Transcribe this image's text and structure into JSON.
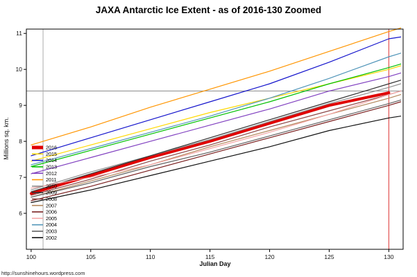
{
  "page": {
    "footer": "http://sunshinehours.wordpress.com"
  },
  "chart_data": {
    "type": "line",
    "title": "JAXA Antarctic Ice Extent - as of 2016-130 Zoomed",
    "xlabel": "Julian Day",
    "ylabel": "Millions sq. km.",
    "xlim": [
      99.6,
      131.2
    ],
    "ylim": [
      5.0,
      11.12
    ],
    "x_ticks": [
      100,
      105,
      110,
      115,
      120,
      125,
      130
    ],
    "y_ticks": [
      6,
      7,
      8,
      9,
      10,
      11
    ],
    "grid": false,
    "legend_position": "inside-left",
    "x": [
      100,
      105,
      110,
      115,
      120,
      125,
      130,
      131
    ],
    "series": [
      {
        "name": "2016",
        "color": "#e00000",
        "width": 4,
        "values": [
          6.55,
          7.05,
          7.55,
          8.0,
          8.5,
          9.0,
          9.35
        ]
      },
      {
        "name": "2015",
        "color": "#ffd800",
        "width": 1.2,
        "values": [
          7.45,
          7.9,
          8.35,
          8.8,
          9.2,
          9.6,
          10.0,
          10.1
        ]
      },
      {
        "name": "2014",
        "color": "#1414cc",
        "width": 1.2,
        "values": [
          7.6,
          8.1,
          8.6,
          9.1,
          9.6,
          10.2,
          10.85,
          10.9
        ]
      },
      {
        "name": "2013",
        "color": "#00c000",
        "width": 1.2,
        "values": [
          7.3,
          7.75,
          8.2,
          8.65,
          9.1,
          9.6,
          10.05,
          10.15
        ]
      },
      {
        "name": "2012",
        "color": "#8040c0",
        "width": 1.2,
        "values": [
          7.1,
          7.55,
          8.0,
          8.45,
          8.9,
          9.4,
          9.8,
          9.9
        ]
      },
      {
        "name": "2011",
        "color": "#ff9500",
        "width": 1.2,
        "values": [
          7.9,
          8.4,
          8.95,
          9.45,
          9.95,
          10.5,
          11.05,
          11.15
        ]
      },
      {
        "name": "2010",
        "color": "#909090",
        "width": 1.2,
        "values": [
          6.65,
          7.15,
          7.6,
          8.05,
          8.55,
          9.05,
          9.5,
          9.6
        ]
      },
      {
        "name": "2009",
        "color": "#303030",
        "width": 1.2,
        "values": [
          6.6,
          7.1,
          7.6,
          8.1,
          8.6,
          9.1,
          9.6,
          9.7
        ]
      },
      {
        "name": "2008",
        "color": "#8b4545",
        "width": 1.2,
        "values": [
          6.5,
          6.95,
          7.45,
          7.9,
          8.4,
          8.85,
          9.3,
          9.4
        ]
      },
      {
        "name": "2007",
        "color": "#b3855a",
        "width": 1.2,
        "values": [
          6.45,
          6.9,
          7.35,
          7.85,
          8.3,
          8.75,
          9.2,
          9.3
        ]
      },
      {
        "name": "2006",
        "color": "#7a1f1f",
        "width": 1.2,
        "values": [
          6.35,
          6.75,
          7.2,
          7.65,
          8.1,
          8.55,
          9.0,
          9.1
        ]
      },
      {
        "name": "2005",
        "color": "#f4a6a6",
        "width": 1.2,
        "values": [
          6.7,
          7.0,
          7.35,
          7.8,
          8.25,
          8.75,
          9.3,
          9.4
        ]
      },
      {
        "name": "2004",
        "color": "#4f94b8",
        "width": 1.2,
        "values": [
          7.35,
          7.8,
          8.25,
          8.7,
          9.2,
          9.75,
          10.35,
          10.45
        ]
      },
      {
        "name": "2003",
        "color": "#606060",
        "width": 1.2,
        "values": [
          6.45,
          6.85,
          7.3,
          7.7,
          8.15,
          8.6,
          9.05,
          9.15
        ]
      },
      {
        "name": "2002",
        "color": "#101010",
        "width": 1.2,
        "values": [
          6.3,
          6.65,
          7.05,
          7.45,
          7.85,
          8.3,
          8.65,
          8.7
        ]
      }
    ],
    "reference_lines": [
      {
        "axis": "y",
        "value": 9.4,
        "color": "#888888",
        "width": 1
      },
      {
        "axis": "x",
        "value": 101,
        "color": "#aaaaaa",
        "width": 1
      },
      {
        "axis": "x",
        "value": 130,
        "color": "#dd3333",
        "width": 1
      }
    ]
  }
}
